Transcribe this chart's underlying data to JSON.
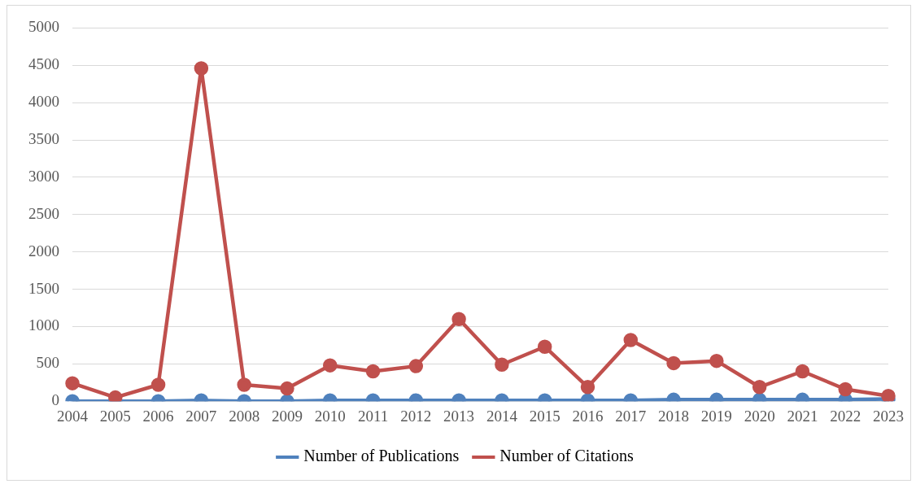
{
  "chart_data": {
    "type": "line",
    "categories": [
      "2004",
      "2005",
      "2006",
      "2007",
      "2008",
      "2009",
      "2010",
      "2011",
      "2012",
      "2013",
      "2014",
      "2015",
      "2016",
      "2017",
      "2018",
      "2019",
      "2020",
      "2021",
      "2022",
      "2023"
    ],
    "series": [
      {
        "name": "Number of Publications",
        "color": "#4f81bd",
        "values": [
          0,
          0,
          0,
          10,
          0,
          0,
          10,
          10,
          10,
          10,
          10,
          10,
          10,
          10,
          20,
          20,
          20,
          20,
          20,
          30
        ]
      },
      {
        "name": "Number of Citations",
        "color": "#c0504d",
        "values": [
          240,
          50,
          220,
          4460,
          220,
          170,
          480,
          400,
          470,
          1100,
          490,
          730,
          190,
          820,
          510,
          540,
          190,
          400,
          160,
          70
        ]
      }
    ],
    "ylim": [
      0,
      5000
    ],
    "yticks": [
      0,
      500,
      1000,
      1500,
      2000,
      2500,
      3000,
      3500,
      4000,
      4500,
      5000
    ],
    "grid": "y",
    "legend": "bottom",
    "marker": "circle",
    "line_style": "solid"
  }
}
